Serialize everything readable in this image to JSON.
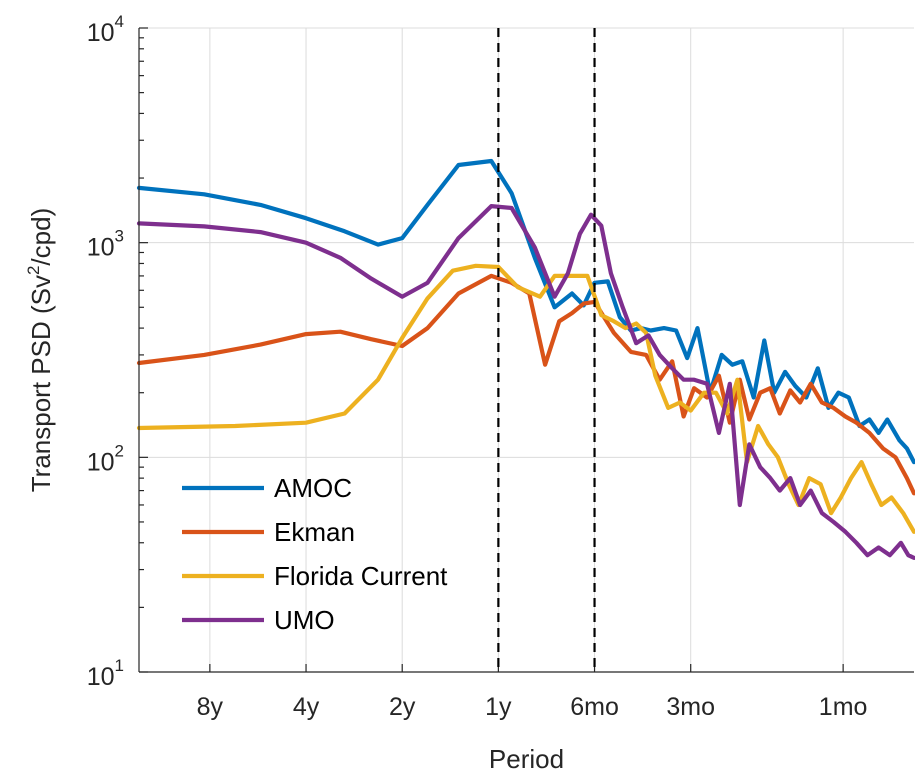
{
  "chart_data": {
    "type": "line",
    "title": "",
    "xlabel": "Period",
    "ylabel": "Transport PSD (Sv²/cpd)",
    "ylabel_parts": {
      "base": "Transport PSD (Sv",
      "sup": "2",
      "tail": "/cpd)"
    },
    "x_scale": "log",
    "y_scale": "log",
    "x_unit": "frequency (cycles per year)",
    "xlim": [
      0.075,
      20
    ],
    "ylim": [
      10,
      10000
    ],
    "grid": true,
    "legend_position": "bottom-left",
    "x_ticks": [
      {
        "label": "8y",
        "value": 0.125
      },
      {
        "label": "4y",
        "value": 0.25
      },
      {
        "label": "2y",
        "value": 0.5
      },
      {
        "label": "1y",
        "value": 1
      },
      {
        "label": "6mo",
        "value": 2
      },
      {
        "label": "3mo",
        "value": 4
      },
      {
        "label": "1mo",
        "value": 12
      }
    ],
    "y_ticks": [
      {
        "base": "10",
        "exp": "1",
        "value": 10
      },
      {
        "base": "10",
        "exp": "2",
        "value": 100
      },
      {
        "base": "10",
        "exp": "3",
        "value": 1000
      },
      {
        "base": "10",
        "exp": "4",
        "value": 10000
      }
    ],
    "reference_lines": [
      {
        "x": 1
      },
      {
        "x": 2
      }
    ],
    "series": [
      {
        "name": "AMOC",
        "color": "#0072BD",
        "x": [
          0.075,
          0.12,
          0.18,
          0.25,
          0.33,
          0.42,
          0.5,
          0.6,
          0.75,
          0.95,
          1.1,
          1.3,
          1.5,
          1.7,
          1.85,
          2.0,
          2.2,
          2.4,
          2.6,
          2.8,
          3.0,
          3.3,
          3.6,
          3.9,
          4.2,
          4.6,
          5.0,
          5.4,
          5.8,
          6.3,
          6.8,
          7.3,
          7.9,
          8.5,
          9.2,
          10.0,
          10.8,
          11.6,
          12.5,
          13.5,
          14.5,
          15.5,
          16.5,
          18.0,
          19.0,
          20.0
        ],
        "y": [
          1800,
          1680,
          1500,
          1300,
          1130,
          980,
          1050,
          1500,
          2300,
          2400,
          1700,
          850,
          500,
          580,
          510,
          650,
          660,
          450,
          390,
          400,
          390,
          400,
          390,
          290,
          400,
          200,
          300,
          270,
          280,
          190,
          350,
          200,
          250,
          215,
          190,
          260,
          170,
          200,
          190,
          140,
          150,
          130,
          150,
          120,
          110,
          95
        ]
      },
      {
        "name": "Ekman",
        "color": "#D95319",
        "x": [
          0.075,
          0.12,
          0.18,
          0.25,
          0.32,
          0.4,
          0.5,
          0.6,
          0.75,
          0.95,
          1.1,
          1.25,
          1.4,
          1.55,
          1.7,
          1.85,
          2.0,
          2.3,
          2.6,
          2.9,
          3.2,
          3.5,
          3.8,
          4.1,
          4.5,
          4.9,
          5.3,
          5.7,
          6.1,
          6.6,
          7.1,
          7.6,
          8.2,
          8.8,
          9.5,
          10.3,
          11.2,
          12.2,
          13.2,
          14.5,
          16.0,
          17.5,
          19.0,
          20.0
        ],
        "y": [
          275,
          300,
          335,
          375,
          385,
          355,
          330,
          400,
          580,
          700,
          650,
          580,
          270,
          430,
          470,
          520,
          530,
          380,
          310,
          300,
          230,
          280,
          155,
          210,
          190,
          240,
          145,
          230,
          150,
          200,
          210,
          160,
          205,
          180,
          220,
          180,
          170,
          155,
          145,
          130,
          110,
          100,
          80,
          68
        ]
      },
      {
        "name": "Florida Current",
        "color": "#EDB120",
        "x": [
          0.075,
          0.15,
          0.25,
          0.33,
          0.42,
          0.5,
          0.6,
          0.72,
          0.85,
          1.0,
          1.15,
          1.35,
          1.5,
          1.7,
          1.9,
          2.1,
          2.3,
          2.5,
          2.7,
          2.9,
          3.1,
          3.4,
          3.7,
          4.0,
          4.4,
          4.8,
          5.2,
          5.6,
          6.0,
          6.5,
          7.0,
          7.5,
          8.1,
          8.7,
          9.4,
          10.2,
          11.0,
          11.8,
          12.7,
          13.7,
          14.7,
          15.8,
          17.0,
          18.5,
          20.0
        ],
        "y": [
          137,
          140,
          145,
          160,
          230,
          360,
          550,
          740,
          780,
          770,
          620,
          560,
          700,
          700,
          700,
          460,
          430,
          400,
          420,
          380,
          240,
          170,
          180,
          165,
          200,
          200,
          160,
          230,
          95,
          140,
          115,
          100,
          75,
          60,
          80,
          75,
          55,
          65,
          80,
          95,
          75,
          60,
          65,
          55,
          45
        ]
      },
      {
        "name": "UMO",
        "color": "#7E2F8E",
        "x": [
          0.075,
          0.12,
          0.18,
          0.25,
          0.32,
          0.4,
          0.5,
          0.6,
          0.75,
          0.95,
          1.1,
          1.3,
          1.5,
          1.65,
          1.8,
          1.95,
          2.1,
          2.25,
          2.45,
          2.7,
          2.95,
          3.2,
          3.5,
          3.8,
          4.1,
          4.5,
          4.9,
          5.3,
          5.7,
          6.1,
          6.6,
          7.1,
          7.6,
          8.2,
          8.8,
          9.5,
          10.3,
          11.2,
          12.2,
          13.2,
          14.3,
          15.5,
          16.8,
          18.2,
          19.2,
          20.0
        ],
        "y": [
          1230,
          1190,
          1120,
          1000,
          850,
          680,
          560,
          650,
          1050,
          1480,
          1450,
          950,
          560,
          720,
          1100,
          1350,
          1200,
          720,
          500,
          340,
          370,
          300,
          260,
          230,
          230,
          220,
          130,
          220,
          60,
          115,
          90,
          80,
          70,
          80,
          60,
          70,
          55,
          50,
          45,
          40,
          35,
          38,
          35,
          40,
          35,
          34
        ]
      }
    ]
  }
}
